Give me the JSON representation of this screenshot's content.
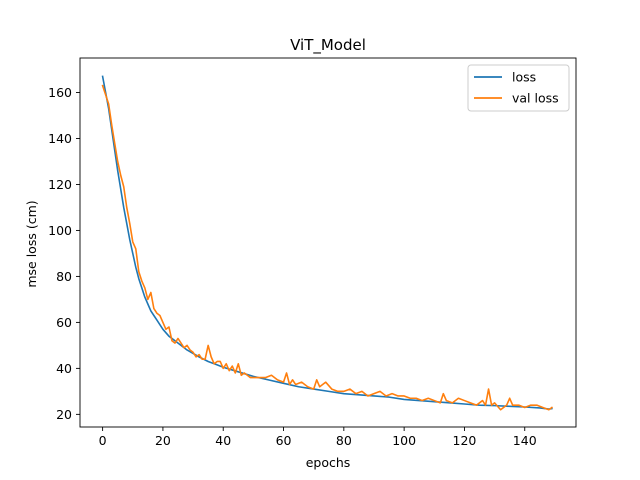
{
  "chart_data": {
    "type": "line",
    "title": "ViT_Model",
    "xlabel": "epochs",
    "ylabel": "mse loss (cm)",
    "xlim": [
      -7.5,
      157
    ],
    "ylim": [
      14.5,
      175
    ],
    "xticks": [
      0,
      20,
      40,
      60,
      80,
      100,
      120,
      140
    ],
    "yticks": [
      20,
      40,
      60,
      80,
      100,
      120,
      140,
      160
    ],
    "grid": false,
    "legend_position": "top-right",
    "series": [
      {
        "name": "loss",
        "color": "#1f77b4",
        "x": [
          0,
          1,
          2,
          3,
          4,
          5,
          6,
          7,
          8,
          9,
          10,
          11,
          12,
          13,
          14,
          15,
          16,
          17,
          18,
          19,
          20,
          22,
          24,
          26,
          28,
          30,
          32,
          35,
          38,
          40,
          45,
          50,
          55,
          60,
          65,
          70,
          75,
          80,
          85,
          90,
          95,
          100,
          105,
          110,
          115,
          120,
          125,
          130,
          135,
          140,
          145,
          148,
          149
        ],
        "y": [
          167,
          160,
          153,
          144,
          135,
          126,
          118,
          110,
          103,
          96,
          90,
          84,
          79,
          75,
          71,
          68,
          65,
          63,
          61,
          59,
          57,
          54,
          52,
          50,
          48,
          46.5,
          45,
          43,
          41.5,
          40.5,
          38.5,
          36.5,
          35,
          33.5,
          32,
          31,
          30,
          29,
          28.5,
          28,
          27.5,
          26.5,
          26,
          25.5,
          25,
          24.5,
          24,
          23.8,
          23.5,
          23.2,
          22.8,
          22.3,
          22.5
        ]
      },
      {
        "name": "val loss",
        "color": "#ff7f0e",
        "x": [
          0,
          1,
          2,
          3,
          4,
          5,
          6,
          7,
          8,
          9,
          10,
          11,
          12,
          13,
          14,
          15,
          16,
          17,
          18,
          19,
          20,
          21,
          22,
          23,
          24,
          25,
          26,
          27,
          28,
          29,
          30,
          31,
          32,
          33,
          34,
          35,
          36,
          37,
          38,
          39,
          40,
          41,
          42,
          43,
          44,
          45,
          46,
          47,
          48,
          49,
          50,
          52,
          54,
          56,
          58,
          60,
          61,
          62,
          63,
          64,
          66,
          68,
          70,
          71,
          72,
          74,
          76,
          78,
          80,
          82,
          84,
          86,
          88,
          90,
          92,
          94,
          96,
          98,
          100,
          102,
          104,
          106,
          108,
          110,
          112,
          113,
          114,
          116,
          118,
          120,
          122,
          124,
          126,
          127,
          128,
          129,
          130,
          132,
          134,
          135,
          136,
          138,
          140,
          142,
          144,
          146,
          148,
          149
        ],
        "y": [
          163,
          159,
          155,
          146,
          138,
          130,
          124,
          119,
          110,
          103,
          95,
          92,
          82,
          78,
          75,
          70,
          73,
          66,
          64,
          63,
          60,
          57,
          58,
          52,
          51,
          53,
          51,
          49,
          50,
          48,
          47,
          45,
          46,
          44,
          44,
          50,
          45,
          42,
          43,
          43,
          40,
          42,
          39,
          41,
          38,
          42,
          37,
          38,
          37,
          36,
          36,
          36,
          36,
          37,
          35,
          34,
          38,
          33,
          35,
          33,
          34,
          32,
          31,
          35,
          32,
          34,
          31,
          30,
          30,
          31,
          29,
          30,
          28,
          29,
          30,
          28,
          29,
          28,
          28,
          27,
          27,
          26,
          27,
          26,
          25,
          29,
          26,
          25,
          27,
          26,
          25,
          24,
          26,
          24,
          31,
          24,
          25,
          22,
          24,
          27,
          24,
          24,
          23,
          24,
          24,
          23,
          22,
          23
        ]
      }
    ]
  }
}
